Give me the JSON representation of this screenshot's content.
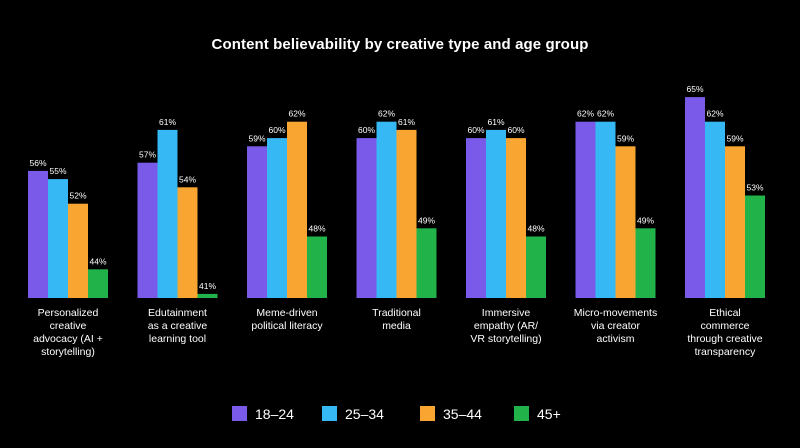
{
  "chart_data": {
    "type": "bar",
    "title": "Content believability by creative type and age group",
    "categories": [
      [
        "Personalized",
        "creative",
        "advocacy (AI +",
        "storytelling)"
      ],
      [
        "Edutainment",
        "as a creative",
        "learning tool"
      ],
      [
        "Meme-driven",
        "political literacy"
      ],
      [
        "Traditional",
        "media"
      ],
      [
        "Immersive",
        "empathy (AR/",
        "VR storytelling)"
      ],
      [
        "Micro-movements",
        "via creator",
        "activism"
      ],
      [
        "Ethical",
        "commerce",
        "through creative",
        "transparency"
      ]
    ],
    "series": [
      {
        "name": "18–24",
        "color": "#7a5ae8",
        "values": [
          56,
          57,
          59,
          60,
          60,
          62,
          65
        ]
      },
      {
        "name": "25–34",
        "color": "#36b8f5",
        "values": [
          55,
          61,
          60,
          62,
          61,
          62,
          62
        ]
      },
      {
        "name": "35–44",
        "color": "#f9a531",
        "values": [
          52,
          54,
          62,
          61,
          60,
          59,
          59
        ]
      },
      {
        "name": "45+",
        "color": "#22b24a",
        "values": [
          44,
          41,
          48,
          49,
          48,
          49,
          53
        ]
      }
    ],
    "value_suffix": "%",
    "ylim": [
      40,
      65
    ],
    "legend_position": "bottom-center",
    "grid": false,
    "xlabel": "",
    "ylabel": ""
  }
}
